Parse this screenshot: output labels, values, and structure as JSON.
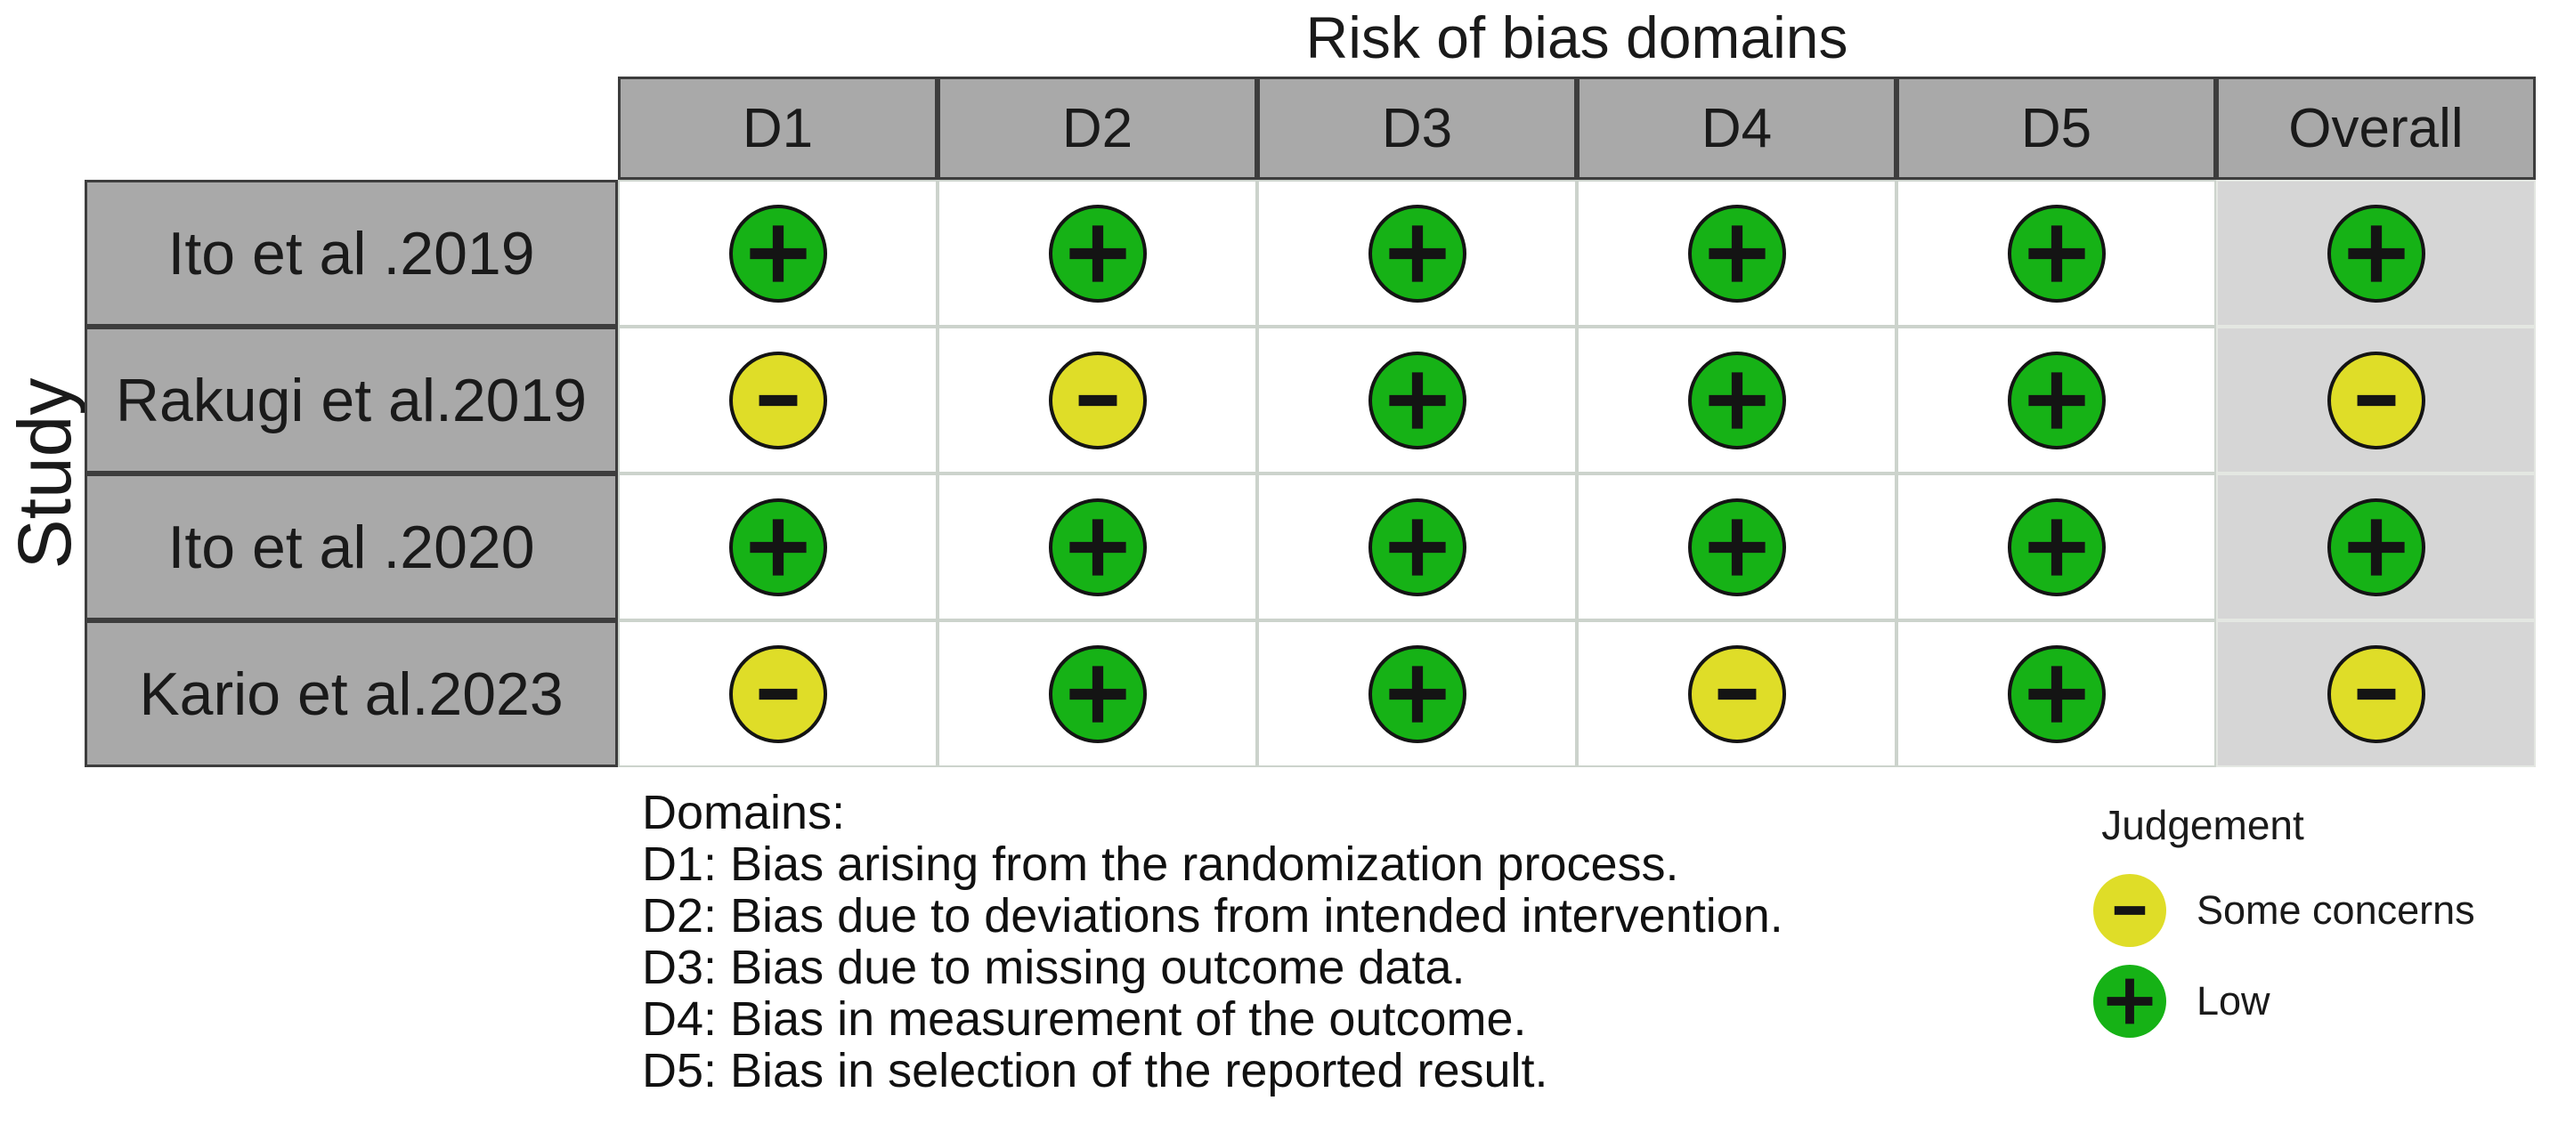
{
  "title": "Risk of bias domains",
  "y_axis_label": "Study",
  "table": {
    "columns": [
      "D1",
      "D2",
      "D3",
      "D4",
      "D5",
      "Overall"
    ],
    "rows": [
      {
        "study": "Ito et al .2019",
        "judgements": [
          "low",
          "low",
          "low",
          "low",
          "low",
          "low"
        ]
      },
      {
        "study": "Rakugi et al.2019",
        "judgements": [
          "some",
          "some",
          "low",
          "low",
          "low",
          "some"
        ]
      },
      {
        "study": "Ito et al .2020",
        "judgements": [
          "low",
          "low",
          "low",
          "low",
          "low",
          "low"
        ]
      },
      {
        "study": "Kario et al.2023",
        "judgements": [
          "some",
          "low",
          "low",
          "some",
          "low",
          "some"
        ]
      }
    ]
  },
  "judgements": {
    "low": {
      "label": "Low",
      "symbol": "+",
      "color": "#16b216"
    },
    "some": {
      "label": "Some concerns",
      "symbol": "-",
      "color": "#dfdd28"
    }
  },
  "legend": {
    "domains_title": "Domains:",
    "domains": [
      "D1: Bias arising from the randomization process.",
      "D2: Bias due to deviations from intended intervention.",
      "D3: Bias due to missing outcome data.",
      "D4: Bias in measurement of the outcome.",
      "D5: Bias in selection of the reported result."
    ],
    "judgement_title": "Judgement",
    "items": [
      {
        "key": "some",
        "label": "Some concerns"
      },
      {
        "key": "low",
        "label": "Low"
      }
    ]
  },
  "colors": {
    "header_bg": "#a9a9a9",
    "overall_bg": "#d6d6d6",
    "grid_dark": "#3d3d3d",
    "grid_light": "#ccd3cc",
    "ink": "#141414"
  },
  "chart_data": {
    "type": "table",
    "title": "Risk of bias domains",
    "ylabel": "Study",
    "columns": [
      "D1",
      "D2",
      "D3",
      "D4",
      "D5",
      "Overall"
    ],
    "rows": [
      "Ito et al .2019",
      "Rakugi et al.2019",
      "Ito et al .2020",
      "Kario et al.2023"
    ],
    "values": [
      [
        "Low",
        "Low",
        "Low",
        "Low",
        "Low",
        "Low"
      ],
      [
        "Some concerns",
        "Some concerns",
        "Low",
        "Low",
        "Low",
        "Some concerns"
      ],
      [
        "Low",
        "Low",
        "Low",
        "Low",
        "Low",
        "Low"
      ],
      [
        "Some concerns",
        "Low",
        "Low",
        "Some concerns",
        "Low",
        "Some concerns"
      ]
    ],
    "legend_position": "bottom-right",
    "grid": true
  }
}
